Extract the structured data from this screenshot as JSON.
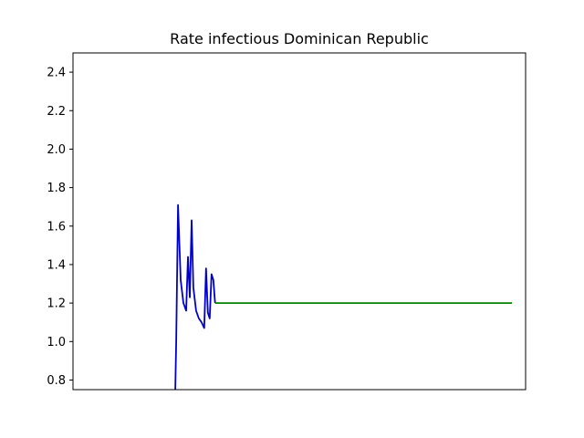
{
  "chart_data": {
    "type": "line",
    "title": "Rate infectious Dominican Republic",
    "xlabel": "",
    "ylabel": "",
    "ylim": [
      0.75,
      2.5
    ],
    "y_ticks": [
      0.8,
      1.0,
      1.2,
      1.4,
      1.6,
      1.8,
      2.0,
      2.2,
      2.4
    ],
    "x_ticks_shown": false,
    "grid": false,
    "xlim": [
      0,
      100
    ],
    "series": [
      {
        "color": "#0000cc",
        "x": [
          22.6,
          22.8,
          23.2,
          23.8,
          24.4,
          25.0,
          25.4,
          25.8,
          26.2,
          26.6,
          27.2,
          27.8,
          28.4,
          29.0,
          29.4,
          29.8,
          30.2,
          30.6,
          31.0,
          31.4
        ],
        "y": [
          0.75,
          1.0,
          1.71,
          1.32,
          1.2,
          1.16,
          1.44,
          1.23,
          1.63,
          1.28,
          1.16,
          1.12,
          1.1,
          1.07,
          1.38,
          1.15,
          1.12,
          1.35,
          1.32,
          1.2
        ]
      },
      {
        "color": "#008000",
        "x": [
          31.4,
          97.0
        ],
        "y": [
          1.2,
          1.2
        ]
      }
    ]
  }
}
